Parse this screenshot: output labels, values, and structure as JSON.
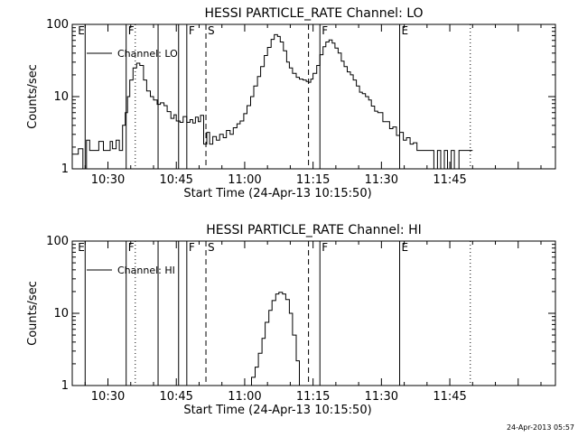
{
  "footer": {
    "stamp": "24-Apr-2013 05:57"
  },
  "chart_data": [
    {
      "type": "line",
      "title": "HESSI PARTICLE_RATE Channel: LO",
      "xlabel": "Start Time (24-Apr-13 10:15:50)",
      "ylabel": "Counts/sec",
      "yscale": "log",
      "ylim": [
        1,
        100
      ],
      "xlim_minutes": [
        22.17,
        128.17
      ],
      "xticks": [
        {
          "min": 30,
          "label": "10:30"
        },
        {
          "min": 45,
          "label": "10:45"
        },
        {
          "min": 60,
          "label": "11:00"
        },
        {
          "min": 75,
          "label": "11:15"
        },
        {
          "min": 90,
          "label": "11:30"
        },
        {
          "min": 105,
          "label": "11:45"
        }
      ],
      "yticks": [
        {
          "value": 1,
          "label": "1"
        },
        {
          "value": 10,
          "label": "10"
        },
        {
          "value": 100,
          "label": "100"
        }
      ],
      "legend": "top-left",
      "series": [
        {
          "name": "Channel: LO",
          "x": [
            22.2,
            23.5,
            24.5,
            25.3,
            26.0,
            27.0,
            28.0,
            29.0,
            29.8,
            30.5,
            31.0,
            31.8,
            32.5,
            33.2,
            33.8,
            34.3,
            34.8,
            35.5,
            36.3,
            37.0,
            37.8,
            38.5,
            39.3,
            40.0,
            40.8,
            41.5,
            42.3,
            43.0,
            43.8,
            44.5,
            45.0,
            45.8,
            46.5,
            47.3,
            48.0,
            48.6,
            49.2,
            49.8,
            50.3,
            51.0,
            51.7,
            52.3,
            53.0,
            53.8,
            54.5,
            55.3,
            56.0,
            56.8,
            57.5,
            58.3,
            59.0,
            59.8,
            60.5,
            61.3,
            62.0,
            62.8,
            63.5,
            64.3,
            65.0,
            65.8,
            66.5,
            67.2,
            67.8,
            68.5,
            69.2,
            69.8,
            70.5,
            71.3,
            72.0,
            72.8,
            73.5,
            74.0,
            74.5,
            75.0,
            75.8,
            76.5,
            77.2,
            77.8,
            78.5,
            79.2,
            79.8,
            80.5,
            81.2,
            81.8,
            82.5,
            83.2,
            83.8,
            84.5,
            85.2,
            85.8,
            86.5,
            87.2,
            87.8,
            88.5,
            89.2,
            89.8,
            90.3,
            91.0,
            91.8,
            92.5,
            93.3,
            94.0,
            94.8,
            95.5,
            96.3,
            97.0,
            97.8,
            98.5,
            99.3,
            100.0,
            100.8,
            101.5,
            102.3,
            103.0,
            103.8,
            104.5,
            105.3,
            106.0,
            107.0,
            108.0,
            109.0,
            110.0
          ],
          "y": [
            1.6,
            1.9,
            1.0,
            2.5,
            1.8,
            1.8,
            2.4,
            1.8,
            1.8,
            2.4,
            1.9,
            2.5,
            1.8,
            4.0,
            6.0,
            10.0,
            17.0,
            25.0,
            29.0,
            27.0,
            17.0,
            12.0,
            10.0,
            9.0,
            7.8,
            8.2,
            7.5,
            6.2,
            5.0,
            5.6,
            4.6,
            4.4,
            5.3,
            4.4,
            4.8,
            4.3,
            5.2,
            4.5,
            5.5,
            2.2,
            3.2,
            2.2,
            2.8,
            2.5,
            3.0,
            2.7,
            3.4,
            3.0,
            3.7,
            4.2,
            4.6,
            5.8,
            7.5,
            10.0,
            14.0,
            19.0,
            26.0,
            37.0,
            48.0,
            62.0,
            72.0,
            68.0,
            57.0,
            43.0,
            30.0,
            25.0,
            21.0,
            18.5,
            17.5,
            17.0,
            16.2,
            15.8,
            17.5,
            21.0,
            27.0,
            38.0,
            49.0,
            57.0,
            61.0,
            55.0,
            47.0,
            40.0,
            31.0,
            26.0,
            22.0,
            20.0,
            17.0,
            14.0,
            11.5,
            11.0,
            10.0,
            9.0,
            7.4,
            6.3,
            6.0,
            6.0,
            4.5,
            4.5,
            3.6,
            3.8,
            2.9,
            3.2,
            2.5,
            2.7,
            2.2,
            2.3,
            1.8,
            1.8,
            1.8,
            1.8,
            1.8,
            1.0,
            1.8,
            1.0,
            1.8,
            1.0,
            1.8,
            1.0,
            1.8,
            1.8,
            1.8,
            1.8
          ]
        }
      ],
      "annotations": [
        {
          "x": 25.0,
          "letter": "",
          "style": "solid"
        },
        {
          "x": 34.0,
          "letter": "F",
          "style": "solid"
        },
        {
          "x": 41.0,
          "letter": "",
          "style": "solid"
        },
        {
          "x": 45.5,
          "letter": "",
          "style": "solid"
        },
        {
          "x": 47.3,
          "letter": "F",
          "style": "solid"
        },
        {
          "x": 51.5,
          "letter": "S",
          "style": "dashed"
        },
        {
          "x": 74.0,
          "letter": "",
          "style": "dashed"
        },
        {
          "x": 76.5,
          "letter": "F",
          "style": "solid"
        },
        {
          "x": 94.0,
          "letter": "E",
          "style": "solid"
        },
        {
          "x": 109.5,
          "letter": "",
          "style": "dotted"
        },
        {
          "x": 23.0,
          "letter": "E",
          "style": "none"
        },
        {
          "x": 36.0,
          "letter": "",
          "style": "dotted"
        }
      ]
    },
    {
      "type": "line",
      "title": "HESSI PARTICLE_RATE Channel: HI",
      "xlabel": "Start Time (24-Apr-13 10:15:50)",
      "ylabel": "Counts/sec",
      "yscale": "log",
      "ylim": [
        1,
        100
      ],
      "xlim_minutes": [
        22.17,
        128.17
      ],
      "xticks": [
        {
          "min": 30,
          "label": "10:30"
        },
        {
          "min": 45,
          "label": "10:45"
        },
        {
          "min": 60,
          "label": "11:00"
        },
        {
          "min": 75,
          "label": "11:15"
        },
        {
          "min": 90,
          "label": "11:30"
        },
        {
          "min": 105,
          "label": "11:45"
        }
      ],
      "yticks": [
        {
          "value": 1,
          "label": "1"
        },
        {
          "value": 10,
          "label": "10"
        },
        {
          "value": 100,
          "label": "100"
        }
      ],
      "legend": "top-left",
      "series": [
        {
          "name": "Channel: HI",
          "x": [
            60.8,
            61.5,
            62.3,
            63.0,
            63.8,
            64.5,
            65.3,
            66.0,
            66.8,
            67.5,
            68.3,
            69.0,
            69.8,
            70.5,
            71.3,
            72.0
          ],
          "y": [
            1.0,
            1.3,
            1.8,
            2.8,
            4.5,
            7.5,
            11.0,
            15.0,
            18.5,
            19.5,
            18.5,
            15.5,
            10.0,
            5.0,
            2.2,
            1.0
          ]
        }
      ],
      "annotations": [
        {
          "x": 25.0,
          "letter": "",
          "style": "solid"
        },
        {
          "x": 34.0,
          "letter": "F",
          "style": "solid"
        },
        {
          "x": 41.0,
          "letter": "",
          "style": "solid"
        },
        {
          "x": 45.5,
          "letter": "",
          "style": "solid"
        },
        {
          "x": 47.3,
          "letter": "F",
          "style": "solid"
        },
        {
          "x": 51.5,
          "letter": "S",
          "style": "dashed"
        },
        {
          "x": 74.0,
          "letter": "",
          "style": "dashed"
        },
        {
          "x": 76.5,
          "letter": "F",
          "style": "solid"
        },
        {
          "x": 94.0,
          "letter": "E",
          "style": "solid"
        },
        {
          "x": 109.5,
          "letter": "",
          "style": "dotted"
        },
        {
          "x": 23.0,
          "letter": "E",
          "style": "none"
        },
        {
          "x": 36.0,
          "letter": "",
          "style": "dotted"
        }
      ]
    }
  ]
}
